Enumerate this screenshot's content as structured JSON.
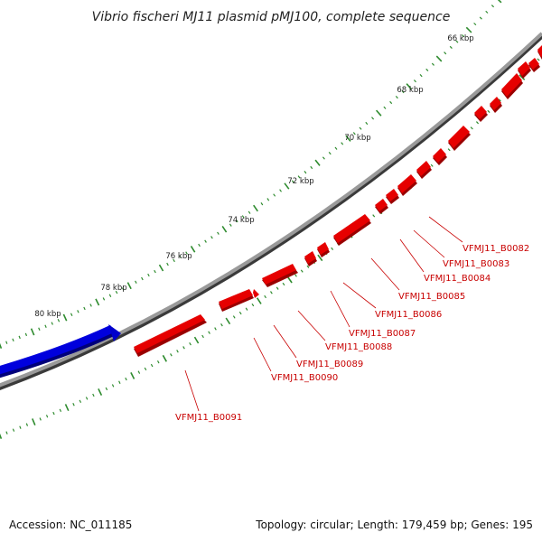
{
  "title": "Vibrio fischeri MJ11 plasmid pMJ100, complete sequence",
  "footer": {
    "accession": "Accession: NC_011185",
    "topology": "Topology: circular; Length: 179,459 bp; Genes: 195"
  },
  "colors": {
    "backbone": "#8c8c8c",
    "forward_gene": "#e60000",
    "reverse_gene": "#0000dd",
    "ticks": "#2e8b2e",
    "label": "#c80000"
  },
  "scale_labels": [
    "66 kbp",
    "68 kbp",
    "70 kbp",
    "72 kbp",
    "74 kbp",
    "76 kbp",
    "78 kbp",
    "80 kbp"
  ],
  "genes": [
    {
      "id": "VFMJ11_B0082",
      "strand": "+"
    },
    {
      "id": "VFMJ11_B0083",
      "strand": "+"
    },
    {
      "id": "VFMJ11_B0084",
      "strand": "+"
    },
    {
      "id": "VFMJ11_B0085",
      "strand": "+"
    },
    {
      "id": "VFMJ11_B0086",
      "strand": "+"
    },
    {
      "id": "VFMJ11_B0087",
      "strand": "+"
    },
    {
      "id": "VFMJ11_B0088",
      "strand": "+"
    },
    {
      "id": "VFMJ11_B0089",
      "strand": "+"
    },
    {
      "id": "VFMJ11_B0090",
      "strand": "+"
    },
    {
      "id": "VFMJ11_B0091",
      "strand": "+"
    }
  ]
}
